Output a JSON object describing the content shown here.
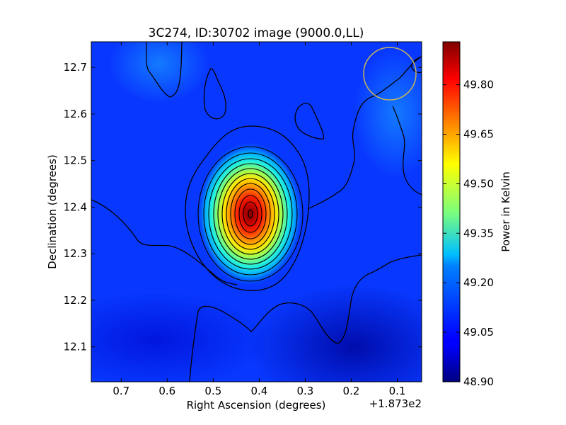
{
  "chart_data": {
    "type": "heatmap",
    "title": "3C274, ID:30702 image (9000.0,LL)",
    "xlabel": "Right Ascension (degrees)",
    "ylabel": "Declination (degrees)",
    "x_offset_label": "+1.873e2",
    "xlim": [
      0.765,
      0.047
    ],
    "ylim": [
      12.025,
      12.755
    ],
    "x_ticks": [
      0.7,
      0.6,
      0.5,
      0.4,
      0.3,
      0.2,
      0.1
    ],
    "x_tick_labels": [
      "0.7",
      "0.6",
      "0.5",
      "0.4",
      "0.3",
      "0.2",
      "0.1"
    ],
    "y_ticks": [
      12.1,
      12.2,
      12.3,
      12.4,
      12.5,
      12.6,
      12.7
    ],
    "y_tick_labels": [
      "12.1",
      "12.2",
      "12.3",
      "12.4",
      "12.5",
      "12.6",
      "12.7"
    ],
    "colorbar": {
      "label": "Power in Kelvin",
      "range": [
        48.9,
        49.93
      ],
      "ticks": [
        48.9,
        49.05,
        49.2,
        49.35,
        49.5,
        49.65,
        49.8
      ],
      "tick_labels": [
        "48.90",
        "49.05",
        "49.20",
        "49.35",
        "49.50",
        "49.65",
        "49.80"
      ],
      "colormap": "jet"
    },
    "peak": {
      "ra": 0.412,
      "dec": 12.38,
      "value": 49.92
    },
    "background_level": 49.02,
    "beam_circle": {
      "ra": 0.12,
      "dec": 12.685,
      "radius_deg": 0.057,
      "color": "#c8b45a"
    },
    "contour_count": 12,
    "grid": false
  }
}
